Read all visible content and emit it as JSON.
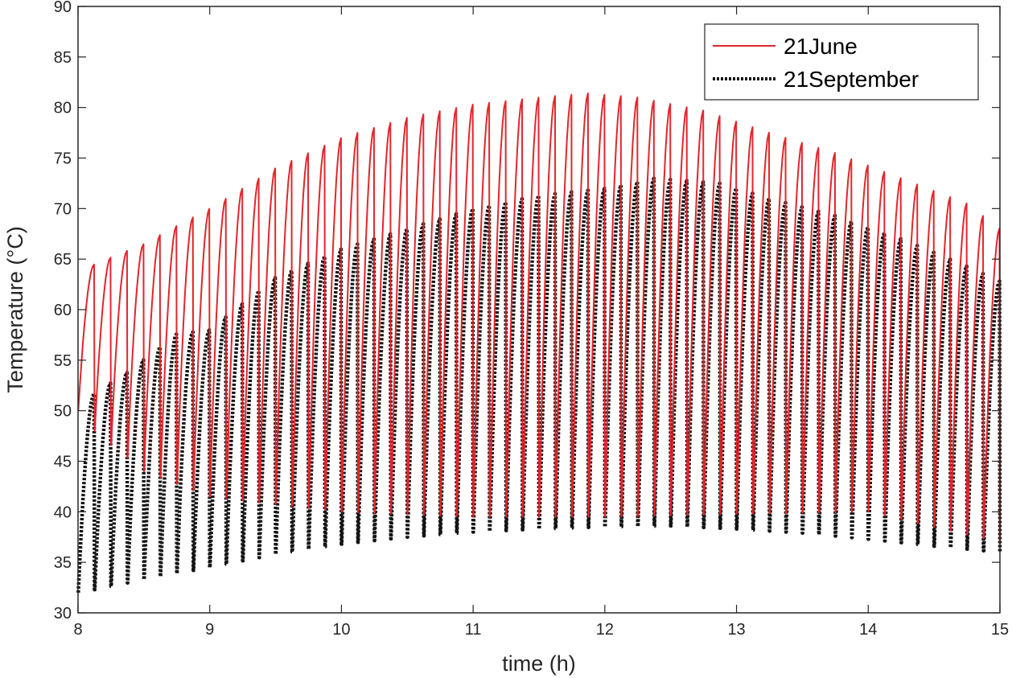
{
  "chart_data": {
    "type": "line",
    "title": "",
    "xlabel": "time (h)",
    "ylabel": "Temperature (°C)",
    "xlim": [
      8,
      15
    ],
    "ylim": [
      30,
      90
    ],
    "x_ticks": [
      8,
      9,
      10,
      11,
      12,
      13,
      14,
      15
    ],
    "y_ticks": [
      30,
      35,
      40,
      45,
      50,
      55,
      60,
      65,
      70,
      75,
      80,
      85,
      90
    ],
    "grid": false,
    "legend_position": "top-right",
    "cycle_hours": 0.125,
    "series": [
      {
        "name": "21June",
        "color": "#e3262c",
        "style": "solid",
        "peak_envelope": [
          [
            8.0,
            63.0
          ],
          [
            8.125,
            64.5
          ],
          [
            8.5,
            66.5
          ],
          [
            8.75,
            68.3
          ],
          [
            9.0,
            70.0
          ],
          [
            9.5,
            74.0
          ],
          [
            10.0,
            77.0
          ],
          [
            10.5,
            79.0
          ],
          [
            11.0,
            80.3
          ],
          [
            11.5,
            81.0
          ],
          [
            11.87,
            81.4
          ],
          [
            12.25,
            81.0
          ],
          [
            12.75,
            79.7
          ],
          [
            13.25,
            77.5
          ],
          [
            13.75,
            75.5
          ],
          [
            14.25,
            73.0
          ],
          [
            14.75,
            70.5
          ],
          [
            15.0,
            68.0
          ]
        ],
        "trough_envelope": [
          [
            8.0,
            50.0
          ],
          [
            8.125,
            48.0
          ],
          [
            8.5,
            44.0
          ],
          [
            9.0,
            41.5
          ],
          [
            10.0,
            40.0
          ],
          [
            11.0,
            39.5
          ],
          [
            12.0,
            39.5
          ],
          [
            13.0,
            39.8
          ],
          [
            14.0,
            40.0
          ],
          [
            15.0,
            37.0
          ]
        ]
      },
      {
        "name": "21September",
        "color": "#151515",
        "style": "dotted",
        "peak_envelope": [
          [
            8.0,
            51.0
          ],
          [
            8.125,
            51.7
          ],
          [
            8.375,
            53.8
          ],
          [
            8.75,
            57.6
          ],
          [
            9.0,
            58.0
          ],
          [
            9.5,
            63.2
          ],
          [
            10.0,
            66.0
          ],
          [
            10.5,
            68.0
          ],
          [
            11.0,
            70.0
          ],
          [
            11.5,
            71.3
          ],
          [
            12.0,
            72.0
          ],
          [
            12.375,
            73.0
          ],
          [
            12.875,
            72.5
          ],
          [
            13.25,
            71.0
          ],
          [
            13.75,
            69.3
          ],
          [
            14.25,
            67.0
          ],
          [
            14.75,
            64.3
          ],
          [
            15.0,
            62.8
          ]
        ],
        "trough_envelope": [
          [
            8.0,
            32.0
          ],
          [
            8.125,
            32.3
          ],
          [
            8.5,
            33.3
          ],
          [
            9.0,
            34.5
          ],
          [
            9.5,
            35.8
          ],
          [
            10.0,
            36.8
          ],
          [
            10.5,
            37.5
          ],
          [
            11.0,
            38.0
          ],
          [
            11.5,
            38.3
          ],
          [
            12.0,
            38.5
          ],
          [
            12.5,
            38.6
          ],
          [
            13.0,
            38.3
          ],
          [
            13.5,
            37.9
          ],
          [
            14.0,
            37.3
          ],
          [
            14.5,
            36.6
          ],
          [
            15.0,
            36.0
          ]
        ]
      }
    ]
  }
}
